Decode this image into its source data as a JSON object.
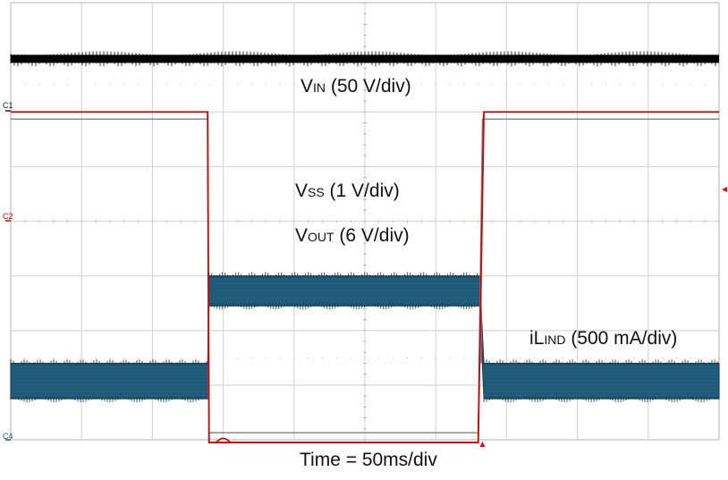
{
  "chart_data": {
    "type": "line",
    "title": "",
    "xlabel": "Time = 50ms/div",
    "time_per_div_ms": 50,
    "grid": {
      "on": true,
      "x_divisions": 10,
      "y_divisions": 8
    },
    "x_range_ms": [
      0,
      500
    ],
    "colors": {
      "grid": "#d9d9d9",
      "vin": "#000000",
      "vss": "#808080",
      "vout": "#d40000",
      "il": "#1f5a78",
      "marker": "#ff0000"
    },
    "series": [
      {
        "name": "VIN (50 V/div)",
        "label_main": "V",
        "label_sub": "IN",
        "label_rest": " (50 V/div)",
        "scale": "50 V/div",
        "channel": "C?",
        "description": "constant with noise band",
        "x_ms": [
          0,
          500
        ],
        "y_div": [
          6.98,
          6.98
        ]
      },
      {
        "name": "VSS (1 V/div)",
        "label_main": "V",
        "label_sub": "SS",
        "label_rest": " (1 V/div)",
        "scale": "1 V/div",
        "channel": "C1",
        "x_ms": [
          0,
          139,
          140,
          330,
          333,
          500
        ],
        "y_div": [
          5.87,
          5.87,
          0.13,
          0.13,
          5.87,
          5.87
        ]
      },
      {
        "name": "VOUT (6 V/div)",
        "label_main": "V",
        "label_sub": "OUT",
        "label_rest": " (6 V/div)",
        "scale": "6 V/div",
        "channel": "C2",
        "x_ms": [
          0,
          139,
          140,
          330,
          334,
          500
        ],
        "y_div": [
          6.0,
          6.0,
          -0.05,
          -0.05,
          6.0,
          6.0
        ]
      },
      {
        "name": "iLIND (500 mA/div)",
        "label_main": "iL",
        "label_sub": "IND",
        "label_rest": " (500 mA/div)",
        "scale": "500 mA/div",
        "channel": "C4",
        "description": "ripple band; low band ~1.0-1.6 div, high band ~2.45-3.0 div above bottom",
        "x_ms": [
          0,
          139,
          140,
          331,
          334,
          500
        ],
        "band_low_div": [
          0.75,
          0.75,
          2.45,
          2.45,
          0.75,
          0.75
        ],
        "band_high_div": [
          1.4,
          1.4,
          3.0,
          3.0,
          1.4,
          1.4
        ]
      }
    ],
    "channel_markers": [
      "C1",
      "C2",
      "C4"
    ],
    "trigger_markers": {
      "time_marker_x_ms": 333,
      "level_marker": "right edge"
    }
  },
  "labels": {
    "vin": {
      "main": "V",
      "sub": "IN",
      "rest": " (50 V/div)"
    },
    "vss": {
      "main": "V",
      "sub": "SS",
      "rest": " (1 V/div)"
    },
    "vout": {
      "main": "V",
      "sub": "OUT",
      "rest": " (6 V/div)"
    },
    "il": {
      "main": "iL",
      "sub": "IND",
      "rest": " (500 mA/div)"
    },
    "time": "Time = 50ms/div",
    "c1": "C1",
    "c2": "C2",
    "c4": "C4"
  }
}
